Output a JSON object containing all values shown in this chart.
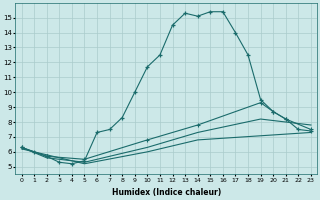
{
  "xlabel": "Humidex (Indice chaleur)",
  "ylabel": "",
  "bg_color": "#cce8e8",
  "grid_color": "#aacccc",
  "line_color": "#1a6b6b",
  "xlim": [
    -0.5,
    23.5
  ],
  "ylim": [
    4.5,
    16
  ],
  "yticks": [
    5,
    6,
    7,
    8,
    9,
    10,
    11,
    12,
    13,
    14,
    15
  ],
  "xticks": [
    0,
    1,
    2,
    3,
    4,
    5,
    6,
    7,
    8,
    9,
    10,
    11,
    12,
    13,
    14,
    15,
    16,
    17,
    18,
    19,
    20,
    21,
    22,
    23
  ],
  "line1_x": [
    0,
    1,
    2,
    3,
    4,
    5,
    6,
    7,
    8,
    9,
    10,
    11,
    12,
    13,
    14,
    15,
    16,
    17,
    18,
    19,
    20,
    21,
    22,
    23
  ],
  "line1_y": [
    6.3,
    6.0,
    5.7,
    5.3,
    5.2,
    5.4,
    7.3,
    7.5,
    8.3,
    10.0,
    11.7,
    12.5,
    14.5,
    15.3,
    15.1,
    15.4,
    15.4,
    14.0,
    12.5,
    9.5,
    8.7,
    8.2,
    7.5,
    7.4
  ],
  "line2_x": [
    0,
    2,
    5,
    10,
    14,
    19,
    20,
    21,
    23
  ],
  "line2_y": [
    6.3,
    5.7,
    5.5,
    6.8,
    7.8,
    9.3,
    8.7,
    8.2,
    7.5
  ],
  "line3_x": [
    0,
    2,
    5,
    10,
    14,
    19,
    23
  ],
  "line3_y": [
    6.3,
    5.6,
    5.3,
    6.3,
    7.3,
    8.2,
    7.8
  ],
  "line4_x": [
    0,
    5,
    10,
    14,
    23
  ],
  "line4_y": [
    6.2,
    5.2,
    6.0,
    6.8,
    7.3
  ]
}
